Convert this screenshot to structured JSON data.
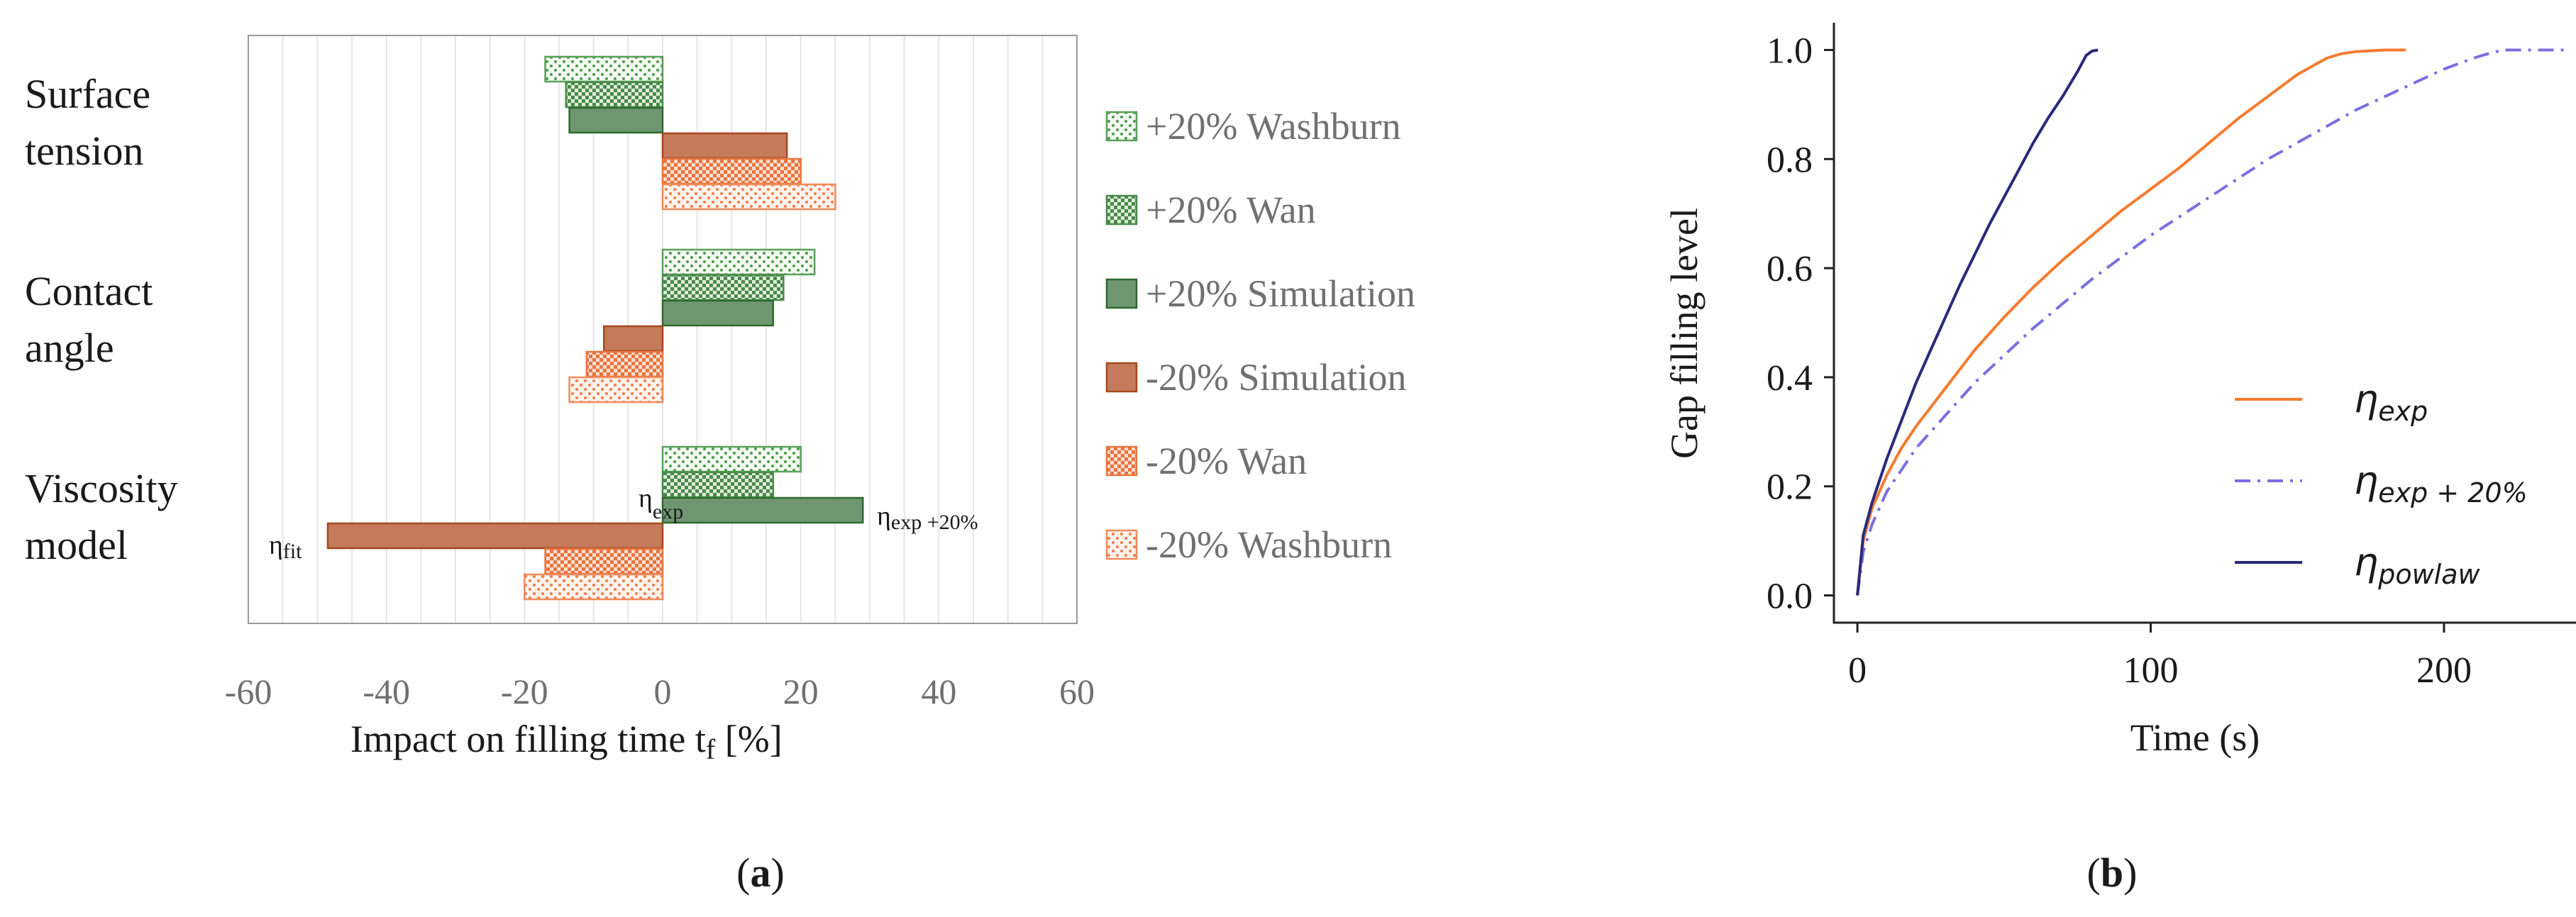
{
  "chart_data": [
    {
      "type": "bar",
      "orientation": "horizontal",
      "panel_label": "a",
      "xlabel": "Impact on filling time t",
      "xlabel_sub": "f",
      "xlabel_unit": " [%]",
      "xlim": [
        -60,
        60
      ],
      "xticks": [
        "-60",
        "-40",
        "-20",
        "0",
        "20",
        "40",
        "60"
      ],
      "grid": "vertical",
      "legend_position": "right",
      "categories": [
        {
          "line1": "Surface",
          "line2": "tension"
        },
        {
          "line1": "Contact",
          "line2": "angle"
        },
        {
          "line1": "Viscosity",
          "line2": "model"
        }
      ],
      "series": [
        {
          "name": "+20% Washburn",
          "pattern": "dots-green",
          "values": [
            -17,
            22,
            20
          ]
        },
        {
          "name": "+20% Wan",
          "pattern": "check-green",
          "values": [
            -14,
            17.5,
            16
          ]
        },
        {
          "name": "+20% Simulation",
          "pattern": "solid-green",
          "values": [
            -13.5,
            16,
            29
          ]
        },
        {
          "name": "-20% Simulation",
          "pattern": "solid-orange",
          "values": [
            18,
            -8.5,
            -48.5
          ]
        },
        {
          "name": "-20% Wan",
          "pattern": "check-orange",
          "values": [
            20,
            -11,
            -17
          ]
        },
        {
          "name": "-20% Washburn",
          "pattern": "dots-orange",
          "values": [
            25,
            -13.5,
            -20
          ]
        }
      ],
      "annotations": {
        "exp": {
          "base": "η",
          "sub": "exp"
        },
        "exp20": {
          "base": "η",
          "sub": "exp +20%"
        },
        "fit": {
          "base": "η",
          "sub": "fit"
        }
      },
      "colors": {
        "green": "#4d8a4d",
        "green_fill": "#6e9670",
        "orange": "#b5562a",
        "orange_fill": "#c47a5b",
        "orange_light": "#f08a5a"
      }
    },
    {
      "type": "line",
      "panel_label": "b",
      "xlabel": "Time (s)",
      "ylabel": "Gap filling level",
      "xlim": [
        -8,
        245
      ],
      "ylim": [
        -0.05,
        1.05
      ],
      "xticks": [
        "0",
        "100",
        "200"
      ],
      "yticks": [
        "0.0",
        "0.2",
        "0.4",
        "0.6",
        "0.8",
        "1.0"
      ],
      "grid": false,
      "legend_position": "bottom-right",
      "series": [
        {
          "name": "η_exp",
          "label_base": "η",
          "label_sub": "exp",
          "color": "#f47c2f",
          "dash": "solid",
          "x": [
            0,
            2,
            5,
            10,
            15,
            20,
            30,
            40,
            50,
            60,
            70,
            80,
            90,
            100,
            110,
            120,
            130,
            140,
            150,
            160,
            165,
            170,
            180,
            187
          ],
          "y": [
            0,
            0.1,
            0.16,
            0.22,
            0.27,
            0.31,
            0.38,
            0.45,
            0.51,
            0.565,
            0.615,
            0.66,
            0.705,
            0.745,
            0.785,
            0.83,
            0.875,
            0.915,
            0.955,
            0.985,
            0.993,
            0.997,
            1.0,
            1.0
          ]
        },
        {
          "name": "η_exp+20%",
          "label_base": "η",
          "label_sub": "exp + 20%",
          "color": "#7b6fe0",
          "dash": "dashdot",
          "x": [
            0,
            2,
            5,
            10,
            15,
            20,
            30,
            40,
            50,
            60,
            70,
            80,
            90,
            100,
            110,
            120,
            130,
            140,
            150,
            160,
            170,
            180,
            190,
            200,
            210,
            215,
            220,
            230,
            241
          ],
          "y": [
            0,
            0.08,
            0.13,
            0.19,
            0.23,
            0.27,
            0.33,
            0.39,
            0.44,
            0.49,
            0.535,
            0.58,
            0.62,
            0.66,
            0.695,
            0.73,
            0.765,
            0.8,
            0.83,
            0.86,
            0.89,
            0.915,
            0.94,
            0.965,
            0.985,
            0.993,
            1.0,
            1.0,
            1.0
          ]
        },
        {
          "name": "η_powlaw",
          "label_base": "η",
          "label_sub": "powlaw",
          "color": "#2a2a7a",
          "dash": "solid",
          "x": [
            0,
            2,
            5,
            10,
            15,
            20,
            25,
            30,
            35,
            40,
            45,
            50,
            55,
            60,
            65,
            70,
            75,
            78,
            80,
            82
          ],
          "y": [
            0,
            0.11,
            0.17,
            0.25,
            0.32,
            0.39,
            0.45,
            0.51,
            0.57,
            0.625,
            0.68,
            0.73,
            0.78,
            0.83,
            0.875,
            0.915,
            0.96,
            0.99,
            0.998,
            1.0
          ]
        }
      ]
    }
  ]
}
